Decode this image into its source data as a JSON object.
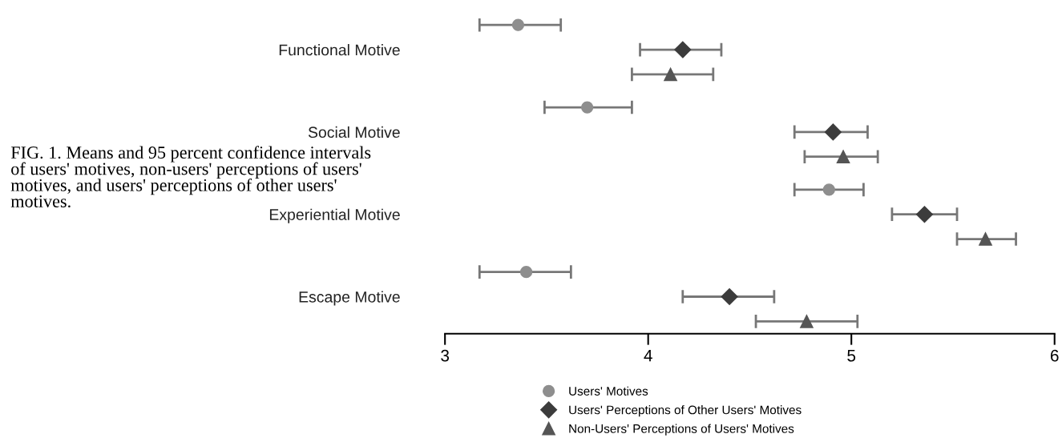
{
  "chart_data": {
    "type": "scatter",
    "orientation": "horizontal",
    "categories": [
      "Functional Motive",
      "Social Motive",
      "Experiential Motive",
      "Escape Motive"
    ],
    "series": [
      {
        "name": "Users' Motives",
        "color": "#8e8e8e",
        "marker": "circle",
        "values": [
          3.36,
          3.7,
          4.89,
          3.4
        ],
        "errors": [
          [
            3.17,
            3.57
          ],
          [
            3.49,
            3.92
          ],
          [
            4.72,
            5.06
          ],
          [
            3.17,
            3.62
          ]
        ]
      },
      {
        "name": "Users' Perceptions of Other Users' Motives",
        "color": "#3c3c3c",
        "marker": "diamond",
        "values": [
          4.17,
          4.91,
          5.36,
          4.4
        ],
        "errors": [
          [
            3.96,
            4.36
          ],
          [
            4.72,
            5.08
          ],
          [
            5.2,
            5.52
          ],
          [
            4.17,
            4.62
          ]
        ]
      },
      {
        "name": "Non-Users' Perceptions of Users' Motives",
        "color": "#555555",
        "marker": "triangle",
        "values": [
          4.11,
          4.96,
          5.66,
          4.78
        ],
        "errors": [
          [
            3.92,
            4.32
          ],
          [
            4.77,
            5.13
          ],
          [
            5.52,
            5.81
          ],
          [
            4.53,
            5.03
          ]
        ]
      }
    ],
    "xlim": [
      3,
      6
    ],
    "xticks": [
      3,
      4,
      5,
      6
    ],
    "grid": false,
    "legend": "bottom",
    "annotations": [
      "FIG. 1. Means and 95 percent confidence intervals of users' motives, non-users' perceptions of users' motives, and users' perceptions of other users' motives."
    ]
  }
}
